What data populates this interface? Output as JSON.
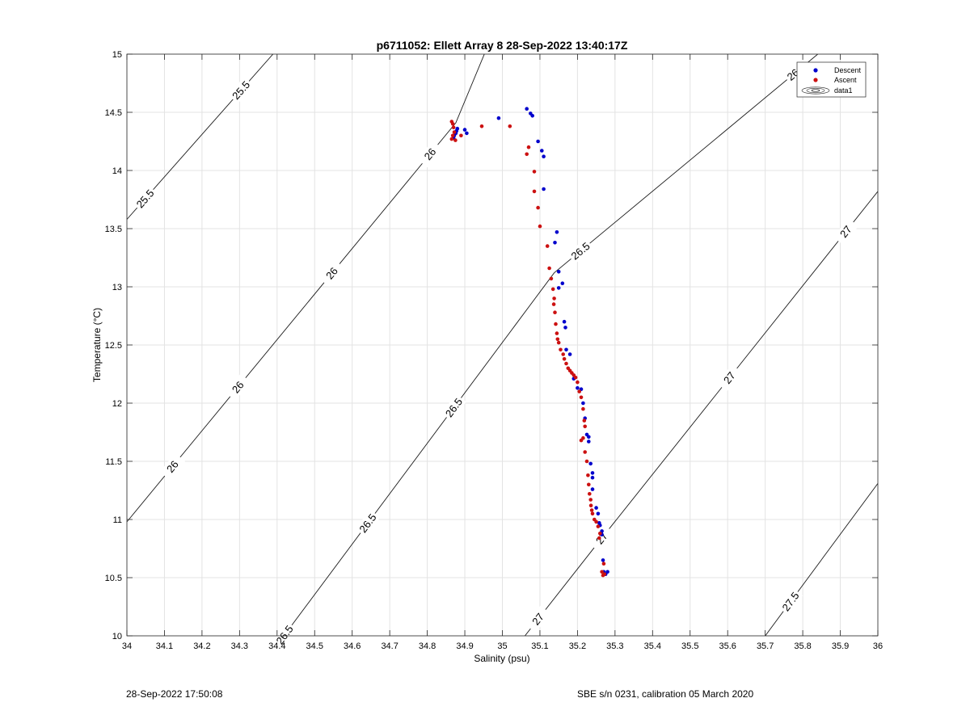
{
  "chart_data": {
    "type": "scatter",
    "title": "p6711052: Ellett Array 8 28-Sep-2022 13:40:17Z",
    "xlabel": "Salinity (psu)",
    "ylabel": "Temperature (°C)",
    "xlim": [
      34,
      36
    ],
    "ylim": [
      10,
      15
    ],
    "xticks": [
      34,
      34.1,
      34.2,
      34.3,
      34.4,
      34.5,
      34.6,
      34.7,
      34.8,
      34.9,
      35,
      35.1,
      35.2,
      35.3,
      35.4,
      35.5,
      35.6,
      35.7,
      35.8,
      35.9,
      36
    ],
    "xtick_labels": [
      "34",
      "34.1",
      "34.2",
      "34.3",
      "34.4",
      "34.5",
      "34.6",
      "34.7",
      "34.8",
      "34.9",
      "35",
      "35.1",
      "35.2",
      "35.3",
      "35.4",
      "35.5",
      "35.6",
      "35.7",
      "35.8",
      "35.9",
      "36"
    ],
    "yticks": [
      10,
      10.5,
      11,
      11.5,
      12,
      12.5,
      13,
      13.5,
      14,
      14.5,
      15
    ],
    "ytick_labels": [
      "10",
      "10.5",
      "11",
      "11.5",
      "12",
      "12.5",
      "13",
      "13.5",
      "14",
      "14.5",
      "15"
    ],
    "grid": true,
    "legend": {
      "placement": "top-right",
      "entries": [
        "Descent",
        "Ascent",
        "data1"
      ]
    },
    "contours": [
      {
        "level": 25.5,
        "label": "25.5",
        "points": [
          [
            34.0,
            13.58
          ],
          [
            34.389,
            15.0
          ]
        ],
        "label_at": [
          [
            34.304,
            14.69
          ],
          [
            34.048,
            13.76
          ]
        ]
      },
      {
        "level": 26.0,
        "label": "26",
        "points": [
          [
            34.0,
            10.98
          ],
          [
            34.876,
            14.41
          ],
          [
            34.952,
            15.0
          ]
        ],
        "label_at": [
          [
            34.815,
            14.12
          ],
          [
            34.257,
            12.24
          ],
          [
            34.127,
            11.44
          ],
          [
            34.552,
            13.1
          ]
        ]
      },
      {
        "level": 26.5,
        "label": "26.5",
        "points": [
          [
            34.418,
            10.0
          ],
          [
            35.138,
            13.12
          ],
          [
            35.84,
            15.0
          ]
        ],
        "label_at": [
          [
            34.495,
            11.32
          ],
          [
            35.21,
            13.3
          ],
          [
            35.79,
            14.82
          ],
          [
            34.73,
            12.3
          ],
          [
            34.236,
            10.45
          ]
        ]
      },
      {
        "level": 27.0,
        "label": "27",
        "points": [
          [
            35.06,
            10.0
          ],
          [
            35.25,
            10.78
          ],
          [
            36.0,
            13.82
          ]
        ],
        "label_at": [
          [
            35.26,
            10.85
          ],
          [
            35.58,
            12.28
          ],
          [
            35.924,
            13.45
          ],
          [
            35.053,
            10.25
          ]
        ]
      },
      {
        "level": 27.5,
        "label": "27.5",
        "points": [
          [
            35.7,
            10.0
          ],
          [
            36.0,
            11.31
          ]
        ],
        "label_at": [
          [
            35.765,
            10.3
          ]
        ]
      }
    ],
    "series": [
      {
        "name": "Descent",
        "color": "#0000cc",
        "points": [
          [
            34.87,
            14.28
          ],
          [
            34.872,
            14.3
          ],
          [
            34.876,
            14.32
          ],
          [
            34.88,
            14.36
          ],
          [
            34.878,
            14.34
          ],
          [
            34.9,
            14.35
          ],
          [
            34.905,
            14.32
          ],
          [
            34.99,
            14.45
          ],
          [
            35.065,
            14.53
          ],
          [
            35.075,
            14.49
          ],
          [
            35.08,
            14.47
          ],
          [
            35.095,
            14.25
          ],
          [
            35.105,
            14.17
          ],
          [
            35.11,
            14.12
          ],
          [
            35.11,
            13.84
          ],
          [
            35.145,
            13.47
          ],
          [
            35.14,
            13.38
          ],
          [
            35.15,
            13.13
          ],
          [
            35.16,
            13.03
          ],
          [
            35.15,
            12.99
          ],
          [
            35.165,
            12.7
          ],
          [
            35.168,
            12.65
          ],
          [
            35.17,
            12.46
          ],
          [
            35.18,
            12.42
          ],
          [
            35.19,
            12.21
          ],
          [
            35.2,
            12.13
          ],
          [
            35.21,
            12.12
          ],
          [
            35.215,
            12.0
          ],
          [
            35.22,
            11.87
          ],
          [
            35.225,
            11.73
          ],
          [
            35.23,
            11.71
          ],
          [
            35.23,
            11.67
          ],
          [
            35.235,
            11.48
          ],
          [
            35.24,
            11.4
          ],
          [
            35.24,
            11.36
          ],
          [
            35.24,
            11.26
          ],
          [
            35.25,
            11.1
          ],
          [
            35.255,
            11.05
          ],
          [
            35.258,
            10.97
          ],
          [
            35.26,
            10.95
          ],
          [
            35.265,
            10.9
          ],
          [
            35.265,
            10.87
          ],
          [
            35.268,
            10.65
          ],
          [
            35.27,
            10.55
          ],
          [
            35.28,
            10.55
          ],
          [
            35.275,
            10.53
          ]
        ]
      },
      {
        "name": "Ascent",
        "color": "#cc1111",
        "points": [
          [
            34.865,
            14.42
          ],
          [
            34.868,
            14.4
          ],
          [
            34.87,
            14.37
          ],
          [
            34.872,
            14.33
          ],
          [
            34.868,
            14.3
          ],
          [
            34.865,
            14.27
          ],
          [
            34.875,
            14.26
          ],
          [
            34.89,
            14.3
          ],
          [
            34.945,
            14.38
          ],
          [
            35.02,
            14.38
          ],
          [
            35.07,
            14.2
          ],
          [
            35.065,
            14.14
          ],
          [
            35.085,
            13.99
          ],
          [
            35.085,
            13.82
          ],
          [
            35.095,
            13.68
          ],
          [
            35.1,
            13.52
          ],
          [
            35.12,
            13.35
          ],
          [
            35.125,
            13.16
          ],
          [
            35.13,
            13.07
          ],
          [
            35.135,
            12.98
          ],
          [
            35.138,
            12.9
          ],
          [
            35.137,
            12.85
          ],
          [
            35.14,
            12.78
          ],
          [
            35.142,
            12.68
          ],
          [
            35.145,
            12.6
          ],
          [
            35.147,
            12.55
          ],
          [
            35.15,
            12.52
          ],
          [
            35.155,
            12.46
          ],
          [
            35.162,
            12.42
          ],
          [
            35.165,
            12.38
          ],
          [
            35.17,
            12.34
          ],
          [
            35.175,
            12.3
          ],
          [
            35.18,
            12.28
          ],
          [
            35.185,
            12.26
          ],
          [
            35.19,
            12.24
          ],
          [
            35.195,
            12.22
          ],
          [
            35.2,
            12.18
          ],
          [
            35.205,
            12.1
          ],
          [
            35.21,
            12.05
          ],
          [
            35.215,
            11.95
          ],
          [
            35.218,
            11.85
          ],
          [
            35.22,
            11.8
          ],
          [
            35.215,
            11.7
          ],
          [
            35.21,
            11.68
          ],
          [
            35.22,
            11.58
          ],
          [
            35.225,
            11.5
          ],
          [
            35.228,
            11.38
          ],
          [
            35.23,
            11.3
          ],
          [
            35.232,
            11.22
          ],
          [
            35.235,
            11.17
          ],
          [
            35.236,
            11.12
          ],
          [
            35.238,
            11.08
          ],
          [
            35.24,
            11.05
          ],
          [
            35.245,
            11.0
          ],
          [
            35.25,
            10.98
          ],
          [
            35.255,
            10.94
          ],
          [
            35.26,
            10.88
          ],
          [
            35.258,
            10.84
          ],
          [
            35.27,
            10.62
          ],
          [
            35.265,
            10.55
          ],
          [
            35.268,
            10.52
          ],
          [
            35.272,
            10.53
          ]
        ]
      }
    ]
  },
  "footer": {
    "left": "28-Sep-2022 17:50:08",
    "right": "SBE s/n 0231, calibration 05 March 2020"
  }
}
